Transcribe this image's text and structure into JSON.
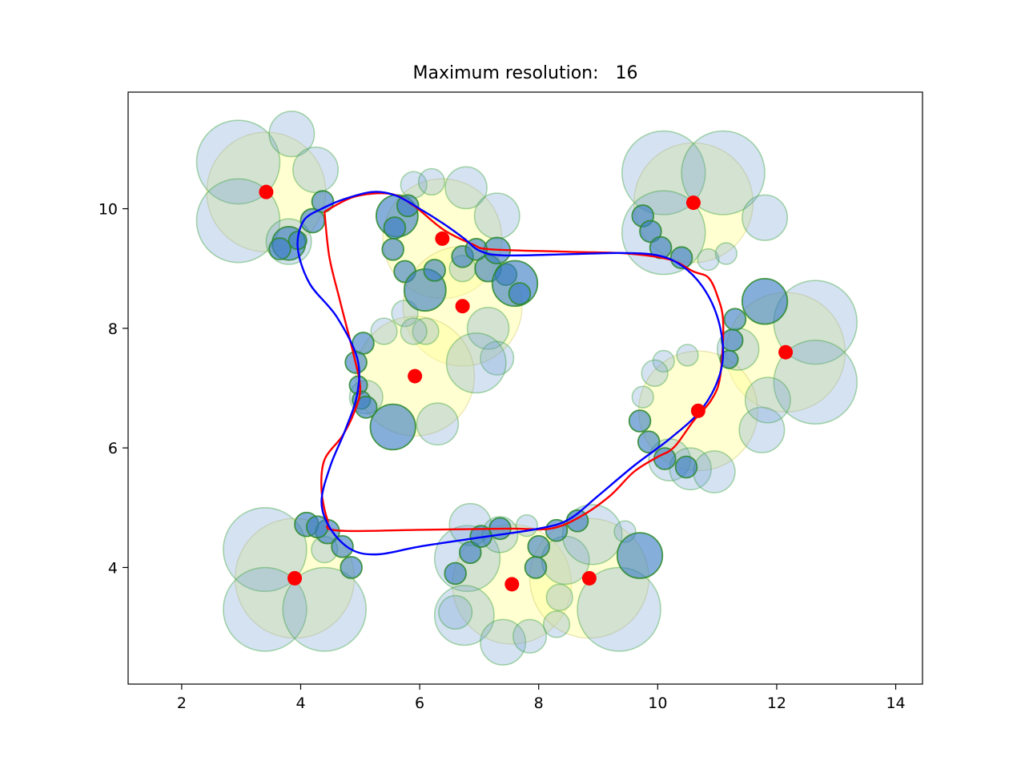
{
  "chart_data": {
    "type": "scatter",
    "title": "Maximum resolution:   16",
    "xlabel": "",
    "ylabel": "",
    "xlim": [
      1.1,
      14.45
    ],
    "ylim": [
      2.05,
      11.95
    ],
    "xticks": [
      2,
      4,
      6,
      8,
      10,
      12,
      14
    ],
    "yticks": [
      4,
      6,
      8,
      10
    ],
    "grid": false,
    "legend": "none",
    "colors": {
      "center_points": "#ff0000",
      "red_path": "#ff0000",
      "blue_path": "#0000ff",
      "large_disk_fill": "#ffff99",
      "outer_circle_fill": "#6fa0cf",
      "outer_circle_edge": "#2ca02c",
      "boundary_circle_fill": "#3a7cc4",
      "boundary_circle_edge": "#2a8a2a"
    },
    "center_points": [
      [
        3.42,
        10.28
      ],
      [
        6.38,
        9.5
      ],
      [
        6.72,
        8.37
      ],
      [
        5.92,
        7.2
      ],
      [
        10.6,
        10.1
      ],
      [
        12.15,
        7.6
      ],
      [
        10.68,
        6.62
      ],
      [
        3.9,
        3.82
      ],
      [
        7.55,
        3.72
      ],
      [
        8.85,
        3.82
      ]
    ],
    "large_disks": [
      [
        3.42,
        10.28,
        1.0
      ],
      [
        6.38,
        9.5,
        1.0
      ],
      [
        6.72,
        8.37,
        1.0
      ],
      [
        5.92,
        7.2,
        1.0
      ],
      [
        10.6,
        10.1,
        1.0
      ],
      [
        12.15,
        7.6,
        1.0
      ],
      [
        10.68,
        6.62,
        1.0
      ],
      [
        3.9,
        3.82,
        1.0
      ],
      [
        7.55,
        3.72,
        1.0
      ],
      [
        8.85,
        3.82,
        1.0
      ]
    ],
    "outer_circles": [
      [
        2.95,
        10.78,
        0.7
      ],
      [
        2.95,
        9.8,
        0.7
      ],
      [
        3.85,
        11.25,
        0.38
      ],
      [
        4.25,
        10.65,
        0.38
      ],
      [
        3.8,
        9.45,
        0.38
      ],
      [
        5.9,
        10.4,
        0.22
      ],
      [
        6.2,
        10.45,
        0.22
      ],
      [
        6.78,
        10.35,
        0.35
      ],
      [
        7.3,
        9.88,
        0.38
      ],
      [
        6.72,
        9.0,
        0.22
      ],
      [
        7.15,
        8.0,
        0.35
      ],
      [
        7.3,
        7.5,
        0.28
      ],
      [
        6.95,
        7.42,
        0.5
      ],
      [
        5.75,
        8.25,
        0.22
      ],
      [
        6.1,
        7.95,
        0.22
      ],
      [
        5.1,
        6.85,
        0.28
      ],
      [
        6.3,
        6.4,
        0.35
      ],
      [
        5.4,
        7.95,
        0.22
      ],
      [
        5.9,
        7.95,
        0.22
      ],
      [
        10.1,
        10.6,
        0.7
      ],
      [
        11.1,
        10.6,
        0.7
      ],
      [
        10.1,
        9.6,
        0.7
      ],
      [
        11.8,
        9.85,
        0.38
      ],
      [
        10.85,
        9.15,
        0.18
      ],
      [
        11.15,
        9.25,
        0.18
      ],
      [
        12.65,
        8.1,
        0.7
      ],
      [
        12.65,
        7.1,
        0.7
      ],
      [
        11.75,
        6.3,
        0.38
      ],
      [
        11.85,
        6.8,
        0.38
      ],
      [
        11.35,
        7.65,
        0.35
      ],
      [
        10.1,
        7.45,
        0.18
      ],
      [
        10.5,
        7.55,
        0.18
      ],
      [
        9.75,
        6.85,
        0.18
      ],
      [
        9.95,
        7.25,
        0.22
      ],
      [
        10.2,
        5.8,
        0.35
      ],
      [
        10.55,
        5.65,
        0.35
      ],
      [
        10.95,
        5.6,
        0.35
      ],
      [
        3.4,
        4.3,
        0.7
      ],
      [
        4.4,
        4.3,
        0.22
      ],
      [
        3.4,
        3.3,
        0.7
      ],
      [
        4.4,
        3.3,
        0.7
      ],
      [
        6.8,
        4.15,
        0.55
      ],
      [
        6.75,
        3.2,
        0.5
      ],
      [
        7.4,
        2.75,
        0.38
      ],
      [
        7.85,
        2.85,
        0.28
      ],
      [
        6.6,
        3.25,
        0.28
      ],
      [
        6.85,
        4.72,
        0.35
      ],
      [
        8.35,
        3.5,
        0.22
      ],
      [
        8.45,
        4.12,
        0.4
      ],
      [
        8.9,
        4.55,
        0.5
      ],
      [
        9.35,
        3.3,
        0.7
      ],
      [
        8.3,
        3.05,
        0.22
      ],
      [
        9.45,
        4.6,
        0.18
      ],
      [
        7.35,
        4.55,
        0.3
      ],
      [
        7.8,
        4.7,
        0.18
      ]
    ],
    "boundary_circles": [
      [
        3.8,
        9.42,
        0.28
      ],
      [
        4.2,
        9.8,
        0.2
      ],
      [
        4.37,
        10.12,
        0.18
      ],
      [
        3.65,
        9.33,
        0.18
      ],
      [
        3.95,
        9.47,
        0.15
      ],
      [
        5.62,
        9.88,
        0.35
      ],
      [
        5.8,
        10.05,
        0.18
      ],
      [
        5.58,
        9.68,
        0.18
      ],
      [
        5.55,
        9.32,
        0.18
      ],
      [
        5.75,
        8.95,
        0.18
      ],
      [
        6.09,
        8.64,
        0.35
      ],
      [
        6.25,
        8.97,
        0.18
      ],
      [
        6.72,
        9.2,
        0.18
      ],
      [
        7.15,
        9.0,
        0.22
      ],
      [
        7.45,
        8.9,
        0.18
      ],
      [
        7.6,
        8.75,
        0.38
      ],
      [
        7.68,
        8.58,
        0.18
      ],
      [
        7.3,
        9.3,
        0.22
      ],
      [
        6.95,
        9.32,
        0.18
      ],
      [
        5.05,
        7.75,
        0.18
      ],
      [
        4.93,
        7.43,
        0.18
      ],
      [
        4.97,
        7.05,
        0.15
      ],
      [
        5.02,
        6.8,
        0.15
      ],
      [
        5.1,
        6.68,
        0.18
      ],
      [
        5.55,
        6.35,
        0.38
      ],
      [
        9.75,
        9.88,
        0.18
      ],
      [
        9.88,
        9.62,
        0.18
      ],
      [
        10.05,
        9.35,
        0.18
      ],
      [
        10.4,
        9.18,
        0.18
      ],
      [
        11.8,
        8.45,
        0.38
      ],
      [
        11.3,
        8.15,
        0.18
      ],
      [
        11.25,
        7.8,
        0.18
      ],
      [
        11.2,
        7.48,
        0.15
      ],
      [
        9.7,
        6.45,
        0.18
      ],
      [
        9.85,
        6.1,
        0.18
      ],
      [
        10.12,
        5.82,
        0.18
      ],
      [
        10.48,
        5.68,
        0.18
      ],
      [
        4.1,
        4.72,
        0.2
      ],
      [
        4.45,
        4.6,
        0.2
      ],
      [
        4.7,
        4.35,
        0.18
      ],
      [
        4.85,
        4.0,
        0.18
      ],
      [
        4.28,
        4.68,
        0.18
      ],
      [
        6.85,
        4.25,
        0.18
      ],
      [
        7.03,
        4.52,
        0.18
      ],
      [
        7.35,
        4.65,
        0.18
      ],
      [
        6.6,
        3.9,
        0.18
      ],
      [
        8.0,
        4.35,
        0.18
      ],
      [
        8.3,
        4.62,
        0.18
      ],
      [
        8.65,
        4.78,
        0.18
      ],
      [
        7.95,
        4.0,
        0.18
      ],
      [
        9.7,
        4.2,
        0.38
      ]
    ],
    "red_path": [
      [
        4.4,
        9.95
      ],
      [
        4.9,
        10.2
      ],
      [
        5.5,
        10.25
      ],
      [
        5.9,
        10.05
      ],
      [
        6.4,
        9.65
      ],
      [
        6.9,
        9.4
      ],
      [
        7.2,
        9.32
      ],
      [
        8.5,
        9.28
      ],
      [
        9.5,
        9.25
      ],
      [
        10.2,
        9.15
      ],
      [
        10.6,
        8.95
      ],
      [
        10.85,
        8.85
      ],
      [
        11.0,
        8.55
      ],
      [
        11.1,
        8.1
      ],
      [
        11.05,
        7.2
      ],
      [
        10.9,
        6.8
      ],
      [
        10.6,
        6.45
      ],
      [
        10.35,
        6.1
      ],
      [
        10.2,
        5.95
      ],
      [
        10.0,
        5.85
      ],
      [
        9.6,
        5.6
      ],
      [
        9.2,
        5.2
      ],
      [
        8.7,
        4.85
      ],
      [
        8.2,
        4.65
      ],
      [
        7.5,
        4.65
      ],
      [
        6.0,
        4.63
      ],
      [
        4.6,
        4.62
      ],
      [
        4.45,
        4.8
      ],
      [
        4.35,
        5.3
      ],
      [
        4.4,
        5.8
      ],
      [
        4.7,
        6.2
      ],
      [
        4.9,
        6.6
      ],
      [
        5.0,
        7.0
      ],
      [
        4.88,
        7.6
      ],
      [
        4.65,
        8.5
      ],
      [
        4.48,
        9.2
      ],
      [
        4.4,
        9.95
      ]
    ],
    "blue_path": [
      [
        4.35,
        10.0
      ],
      [
        4.7,
        10.15
      ],
      [
        5.2,
        10.28
      ],
      [
        5.6,
        10.22
      ],
      [
        6.0,
        10.0
      ],
      [
        6.4,
        9.75
      ],
      [
        6.75,
        9.5
      ],
      [
        7.0,
        9.3
      ],
      [
        7.4,
        9.22
      ],
      [
        8.5,
        9.24
      ],
      [
        9.4,
        9.26
      ],
      [
        10.0,
        9.22
      ],
      [
        10.4,
        9.05
      ],
      [
        10.75,
        8.7
      ],
      [
        11.0,
        8.2
      ],
      [
        11.1,
        7.6
      ],
      [
        11.0,
        7.1
      ],
      [
        10.7,
        6.6
      ],
      [
        10.2,
        6.15
      ],
      [
        9.6,
        5.7
      ],
      [
        9.0,
        5.2
      ],
      [
        8.5,
        4.8
      ],
      [
        8.0,
        4.65
      ],
      [
        7.0,
        4.5
      ],
      [
        6.0,
        4.35
      ],
      [
        5.3,
        4.22
      ],
      [
        4.85,
        4.3
      ],
      [
        4.5,
        4.65
      ],
      [
        4.35,
        5.1
      ],
      [
        4.5,
        5.7
      ],
      [
        4.75,
        6.3
      ],
      [
        4.95,
        6.9
      ],
      [
        4.95,
        7.5
      ],
      [
        4.6,
        8.2
      ],
      [
        4.15,
        8.75
      ],
      [
        3.95,
        9.35
      ],
      [
        4.05,
        9.8
      ],
      [
        4.35,
        10.0
      ]
    ]
  }
}
